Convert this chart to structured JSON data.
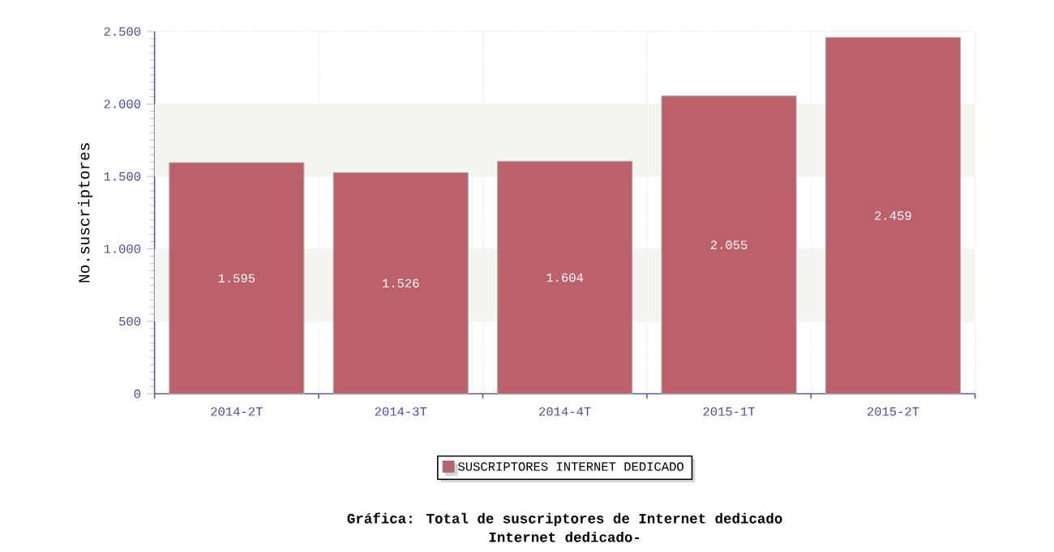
{
  "chart_data": {
    "type": "bar",
    "title": "Gráfica: Total de suscriptores de Internet dedicado",
    "subtitle": "Internet dedicado-",
    "ylabel": "No.suscriptores",
    "categories": [
      "2014-2T",
      "2014-3T",
      "2014-4T",
      "2015-1T",
      "2015-2T"
    ],
    "series": [
      {
        "name": "SUSCRIPTORES INTERNET DEDICADO",
        "color": "#bc616b",
        "values": [
          1595,
          1526,
          1604,
          2055,
          2459
        ],
        "value_labels": [
          "1.595",
          "1.526",
          "1.604",
          "2.055",
          "2.459"
        ]
      }
    ],
    "ylim": [
      0,
      2500
    ],
    "yticks": [
      0,
      500,
      {
        "value": 1000,
        "label": "1.000"
      },
      {
        "value": 1500,
        "label": "1.500"
      },
      {
        "value": 2000,
        "label": "2.000"
      },
      {
        "value": 2500,
        "label": "2.500"
      }
    ],
    "bands": [
      {
        "axis": "y",
        "from": 500,
        "to": 1000,
        "color": "#f5f5f0"
      },
      {
        "axis": "y",
        "from": 1500,
        "to": 2000,
        "color": "#f5f5f0"
      }
    ],
    "grid": true,
    "legend": "bottom"
  }
}
